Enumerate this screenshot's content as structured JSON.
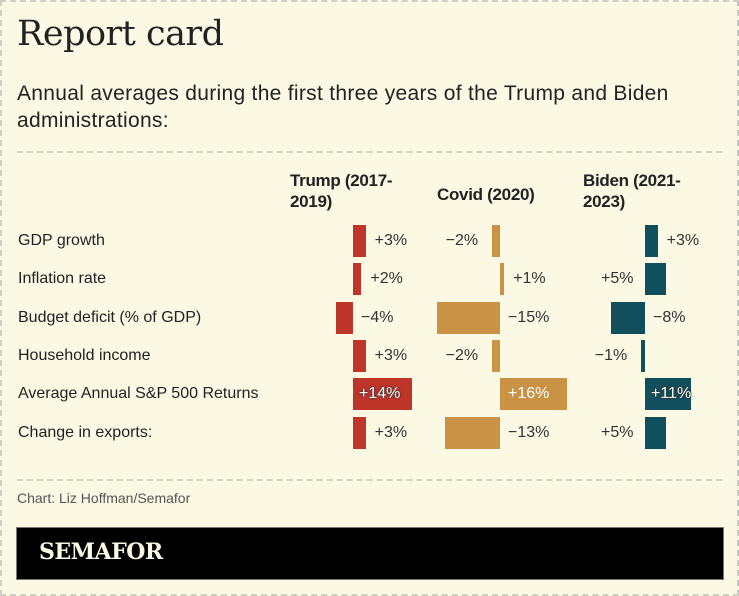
{
  "header": {
    "title": "Report card",
    "subtitle": "Annual averages during the first three years of the Trump and Biden administrations:"
  },
  "footer": {
    "source": "Chart: Liz Hoffman/Semafor",
    "logo": "SEMAFOR"
  },
  "colors": {
    "background": "#fbf9e4",
    "trump": "#c0352a",
    "covid": "#c99245",
    "biden": "#124f5c"
  },
  "chart_data": {
    "type": "table",
    "title": "Report card",
    "subtitle": "Annual averages during the first three years of the Trump and Biden administrations:",
    "columns": [
      "Trump (2017-2019)",
      "Covid (2020)",
      "Biden (2021-2023)"
    ],
    "rows": [
      {
        "label": "GDP growth",
        "values": [
          3,
          -2,
          3
        ],
        "labels": [
          "+3%",
          "−2%",
          "+3%"
        ]
      },
      {
        "label": "Inflation rate",
        "values": [
          2,
          1,
          5
        ],
        "labels": [
          "+2%",
          "+1%",
          "+5%"
        ]
      },
      {
        "label": "Budget deficit (% of GDP)",
        "values": [
          -4,
          -15,
          -8
        ],
        "labels": [
          "−4%",
          "−15%",
          "−8%"
        ]
      },
      {
        "label": "Household income",
        "values": [
          3,
          -2,
          -1
        ],
        "labels": [
          "+3%",
          "−2%",
          "−1%"
        ]
      },
      {
        "label": "Average Annual S&P 500 Returns",
        "values": [
          14,
          16,
          11
        ],
        "labels": [
          "+14%",
          "+16%",
          "+11%"
        ]
      },
      {
        "label": "Change in exports:",
        "values": [
          3,
          -13,
          5
        ],
        "labels": [
          "+3%",
          "−13%",
          "+5%"
        ]
      }
    ],
    "unit": "%",
    "source": "Chart: Liz Hoffman/Semafor"
  }
}
